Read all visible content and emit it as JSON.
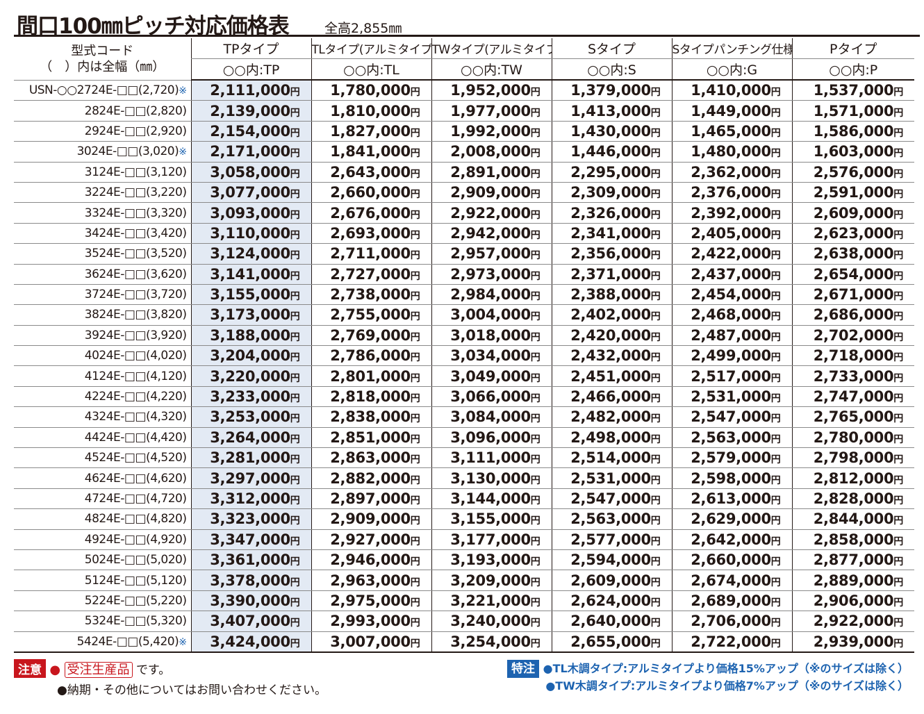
{
  "title": {
    "main": "間口100㎜ピッチ対応価格表",
    "sub": "全高2,855㎜"
  },
  "header": {
    "code_line1": "型式コード",
    "code_line2": "（　）内は全幅（㎜）",
    "columns": [
      {
        "name": "TPタイプ",
        "sub": "○○内:TP"
      },
      {
        "name": "TLタイプ(アルミタイプ)",
        "sub": "○○内:TL"
      },
      {
        "name": "TWタイプ(アルミタイプ)",
        "sub": "○○内:TW"
      },
      {
        "name": "Sタイプ",
        "sub": "○○内:S"
      },
      {
        "name": "Sタイプパンチング仕様",
        "sub": "○○内:G"
      },
      {
        "name": "Pタイプ",
        "sub": "○○内:P"
      }
    ]
  },
  "yen": "円",
  "rows": [
    {
      "code": "USN-○○2724E-□□(2,720)",
      "mark": "※",
      "prices": [
        "2,111,000",
        "1,780,000",
        "1,952,000",
        "1,379,000",
        "1,410,000",
        "1,537,000"
      ]
    },
    {
      "code": "2824E-□□(2,820)",
      "mark": "",
      "prices": [
        "2,139,000",
        "1,810,000",
        "1,977,000",
        "1,413,000",
        "1,449,000",
        "1,571,000"
      ]
    },
    {
      "code": "2924E-□□(2,920)",
      "mark": "",
      "prices": [
        "2,154,000",
        "1,827,000",
        "1,992,000",
        "1,430,000",
        "1,465,000",
        "1,586,000"
      ]
    },
    {
      "code": "3024E-□□(3,020)",
      "mark": "※",
      "prices": [
        "2,171,000",
        "1,841,000",
        "2,008,000",
        "1,446,000",
        "1,480,000",
        "1,603,000"
      ]
    },
    {
      "code": "3124E-□□(3,120)",
      "mark": "",
      "prices": [
        "3,058,000",
        "2,643,000",
        "2,891,000",
        "2,295,000",
        "2,362,000",
        "2,576,000"
      ]
    },
    {
      "code": "3224E-□□(3,220)",
      "mark": "",
      "prices": [
        "3,077,000",
        "2,660,000",
        "2,909,000",
        "2,309,000",
        "2,376,000",
        "2,591,000"
      ]
    },
    {
      "code": "3324E-□□(3,320)",
      "mark": "",
      "prices": [
        "3,093,000",
        "2,676,000",
        "2,922,000",
        "2,326,000",
        "2,392,000",
        "2,609,000"
      ]
    },
    {
      "code": "3424E-□□(3,420)",
      "mark": "",
      "prices": [
        "3,110,000",
        "2,693,000",
        "2,942,000",
        "2,341,000",
        "2,405,000",
        "2,623,000"
      ]
    },
    {
      "code": "3524E-□□(3,520)",
      "mark": "",
      "prices": [
        "3,124,000",
        "2,711,000",
        "2,957,000",
        "2,356,000",
        "2,422,000",
        "2,638,000"
      ]
    },
    {
      "code": "3624E-□□(3,620)",
      "mark": "",
      "prices": [
        "3,141,000",
        "2,727,000",
        "2,973,000",
        "2,371,000",
        "2,437,000",
        "2,654,000"
      ]
    },
    {
      "code": "3724E-□□(3,720)",
      "mark": "",
      "prices": [
        "3,155,000",
        "2,738,000",
        "2,984,000",
        "2,388,000",
        "2,454,000",
        "2,671,000"
      ]
    },
    {
      "code": "3824E-□□(3,820)",
      "mark": "",
      "prices": [
        "3,173,000",
        "2,755,000",
        "3,004,000",
        "2,402,000",
        "2,468,000",
        "2,686,000"
      ]
    },
    {
      "code": "3924E-□□(3,920)",
      "mark": "",
      "prices": [
        "3,188,000",
        "2,769,000",
        "3,018,000",
        "2,420,000",
        "2,487,000",
        "2,702,000"
      ]
    },
    {
      "code": "4024E-□□(4,020)",
      "mark": "",
      "prices": [
        "3,204,000",
        "2,786,000",
        "3,034,000",
        "2,432,000",
        "2,499,000",
        "2,718,000"
      ]
    },
    {
      "code": "4124E-□□(4,120)",
      "mark": "",
      "prices": [
        "3,220,000",
        "2,801,000",
        "3,049,000",
        "2,451,000",
        "2,517,000",
        "2,733,000"
      ]
    },
    {
      "code": "4224E-□□(4,220)",
      "mark": "",
      "prices": [
        "3,233,000",
        "2,818,000",
        "3,066,000",
        "2,466,000",
        "2,531,000",
        "2,747,000"
      ]
    },
    {
      "code": "4324E-□□(4,320)",
      "mark": "",
      "prices": [
        "3,253,000",
        "2,838,000",
        "3,084,000",
        "2,482,000",
        "2,547,000",
        "2,765,000"
      ]
    },
    {
      "code": "4424E-□□(4,420)",
      "mark": "",
      "prices": [
        "3,264,000",
        "2,851,000",
        "3,096,000",
        "2,498,000",
        "2,563,000",
        "2,780,000"
      ]
    },
    {
      "code": "4524E-□□(4,520)",
      "mark": "",
      "prices": [
        "3,281,000",
        "2,863,000",
        "3,111,000",
        "2,514,000",
        "2,579,000",
        "2,798,000"
      ]
    },
    {
      "code": "4624E-□□(4,620)",
      "mark": "",
      "prices": [
        "3,297,000",
        "2,882,000",
        "3,130,000",
        "2,531,000",
        "2,598,000",
        "2,812,000"
      ]
    },
    {
      "code": "4724E-□□(4,720)",
      "mark": "",
      "prices": [
        "3,312,000",
        "2,897,000",
        "3,144,000",
        "2,547,000",
        "2,613,000",
        "2,828,000"
      ]
    },
    {
      "code": "4824E-□□(4,820)",
      "mark": "",
      "prices": [
        "3,323,000",
        "2,909,000",
        "3,155,000",
        "2,563,000",
        "2,629,000",
        "2,844,000"
      ]
    },
    {
      "code": "4924E-□□(4,920)",
      "mark": "",
      "prices": [
        "3,347,000",
        "2,927,000",
        "3,177,000",
        "2,577,000",
        "2,642,000",
        "2,858,000"
      ]
    },
    {
      "code": "5024E-□□(5,020)",
      "mark": "",
      "prices": [
        "3,361,000",
        "2,946,000",
        "3,193,000",
        "2,594,000",
        "2,660,000",
        "2,877,000"
      ]
    },
    {
      "code": "5124E-□□(5,120)",
      "mark": "",
      "prices": [
        "3,378,000",
        "2,963,000",
        "3,209,000",
        "2,609,000",
        "2,674,000",
        "2,889,000"
      ]
    },
    {
      "code": "5224E-□□(5,220)",
      "mark": "",
      "prices": [
        "3,390,000",
        "2,975,000",
        "3,221,000",
        "2,624,000",
        "2,689,000",
        "2,906,000"
      ]
    },
    {
      "code": "5324E-□□(5,320)",
      "mark": "",
      "prices": [
        "3,407,000",
        "2,993,000",
        "3,240,000",
        "2,640,000",
        "2,706,000",
        "2,922,000"
      ]
    },
    {
      "code": "5424E-□□(5,420)",
      "mark": "※",
      "prices": [
        "3,424,000",
        "3,007,000",
        "3,254,000",
        "2,655,000",
        "2,722,000",
        "2,939,000"
      ]
    }
  ],
  "notes": {
    "caution_label": "注意",
    "bullet_red": "●",
    "made_to_order": "受注生産品",
    "desu": "です。",
    "delivery": "●納期・その他についてはお問い合わせください。",
    "special_label": "特注",
    "special_1": "●TL木調タイプ:アルミタイプより価格15%アップ（※のサイズは除く）",
    "special_2": "●TW木調タイプ:アルミタイプより価格7%アップ（※のサイズは除く）"
  },
  "colors": {
    "tp_bg": "#e3eaf4",
    "accent_red": "#c8161d",
    "accent_blue": "#1d63b0"
  }
}
